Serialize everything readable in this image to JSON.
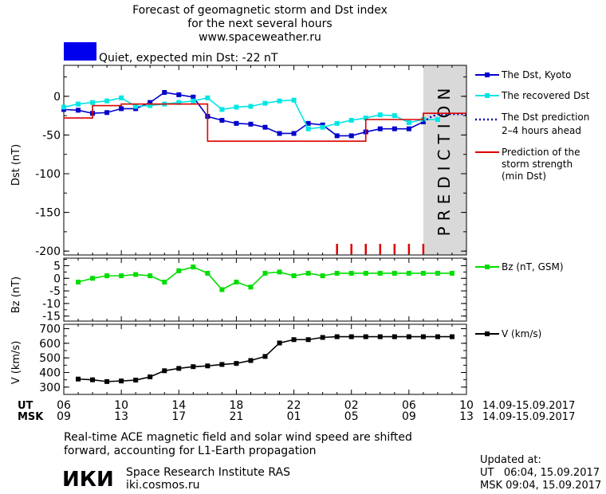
{
  "header": {
    "title_line1": "Forecast of geomagnetic storm and Dst index",
    "title_line2": "for the next several hours",
    "website": "www.spaceweather.ru"
  },
  "status": {
    "color": "#0000ee",
    "text": "Quiet, expected min Dst: -22 nT"
  },
  "prediction_label": "PREDICTION",
  "x_axis": {
    "ut_label": "UT",
    "msk_label": "MSK",
    "ut_ticks": [
      "06",
      "10",
      "14",
      "18",
      "22",
      "02",
      "06",
      "10"
    ],
    "msk_ticks": [
      "09",
      "13",
      "17",
      "21",
      "01",
      "05",
      "09",
      "13"
    ],
    "date_range": "14.09-15.09.2017"
  },
  "chart_data": [
    {
      "type": "line",
      "ylabel": "Dst (nT)",
      "ylim": [
        -205,
        40
      ],
      "yticks": [
        0,
        -50,
        -100,
        -150,
        -200
      ],
      "xlim": [
        6,
        34
      ],
      "prediction_region": [
        31,
        34
      ],
      "series": [
        {
          "name": "The Dst, Kyoto",
          "color": "#0000cc",
          "marker": "square",
          "x": [
            6,
            7,
            8,
            9,
            10,
            11,
            12,
            13,
            14,
            15,
            16,
            17,
            18,
            19,
            20,
            21,
            22,
            23,
            24,
            25,
            26,
            27,
            28,
            29,
            30,
            31
          ],
          "y": [
            -17,
            -18,
            -22,
            -21,
            -16,
            -16,
            -8,
            5,
            2,
            -1,
            -26,
            -31,
            -35,
            -36,
            -40,
            -48,
            -48,
            -35,
            -37,
            -51,
            -51,
            -46,
            -42,
            -42,
            -42,
            -33
          ]
        },
        {
          "name": "The recovered Dst",
          "color": "#00e5e5",
          "marker": "square",
          "x": [
            6,
            7,
            8,
            9,
            10,
            11,
            12,
            13,
            14,
            15,
            16,
            17,
            18,
            19,
            20,
            21,
            22,
            23,
            24,
            25,
            26,
            27,
            28,
            29,
            30,
            31,
            32
          ],
          "y": [
            -14,
            -10,
            -8,
            -6,
            -2,
            -13,
            -12,
            -10,
            -8,
            -6,
            -2,
            -17,
            -14,
            -13,
            -9,
            -6,
            -5,
            -42,
            -40,
            -35,
            -31,
            -28,
            -24,
            -25,
            -34,
            -30,
            -30
          ]
        },
        {
          "name": "The Dst prediction 2-4 hours ahead",
          "color": "#0000aa",
          "style": "dotted",
          "x": [
            31,
            31.5,
            32,
            33,
            34
          ],
          "y": [
            -33,
            -27,
            -23,
            -23,
            -23
          ]
        },
        {
          "name": "Prediction of the storm strength (min Dst)",
          "color": "#dd0000",
          "style": "step",
          "x": [
            6,
            7,
            8,
            9,
            10,
            11,
            12,
            13,
            14,
            15,
            16,
            17,
            18,
            19,
            20,
            21,
            22,
            23,
            24,
            25,
            26,
            27,
            28,
            29,
            30,
            31,
            32,
            33,
            34
          ],
          "y": [
            -28,
            -28,
            -12,
            -12,
            -10,
            -10,
            -10,
            -10,
            -10,
            -10,
            -58,
            -58,
            -58,
            -58,
            -58,
            -58,
            -58,
            -58,
            -58,
            -58,
            -58,
            -30,
            -30,
            -30,
            -30,
            -22,
            -22,
            -22,
            -22
          ]
        }
      ],
      "storm_markers": {
        "color": "#dd0000",
        "x": [
          25,
          26,
          27,
          28,
          29,
          30,
          31
        ]
      }
    },
    {
      "type": "line",
      "ylabel": "Bz (nT)",
      "ylim": [
        -17,
        8
      ],
      "yticks": [
        5,
        0,
        -5,
        -10,
        -15
      ],
      "xlim": [
        6,
        34
      ],
      "series": [
        {
          "name": "Bz (nT, GSM)",
          "color": "#00dd00",
          "marker": "square",
          "x": [
            7,
            8,
            9,
            10,
            11,
            12,
            13,
            14,
            15,
            16,
            17,
            18,
            19,
            20,
            21,
            22,
            23,
            24,
            25,
            26,
            27,
            28,
            29,
            30,
            31,
            32,
            33
          ],
          "y": [
            -1.5,
            0,
            1,
            1,
            1.5,
            1,
            -1.5,
            3,
            4.5,
            2,
            -4.5,
            -1.5,
            -3.5,
            2,
            2.5,
            1,
            2,
            1,
            2,
            2,
            2,
            2,
            2,
            2,
            2,
            2,
            2
          ]
        }
      ]
    },
    {
      "type": "line",
      "ylabel": "V (km/s)",
      "ylim": [
        250,
        730
      ],
      "yticks": [
        700,
        600,
        500,
        400,
        300
      ],
      "xlim": [
        6,
        34
      ],
      "series": [
        {
          "name": "V (km/s)",
          "color": "#000000",
          "marker": "square",
          "x": [
            7,
            8,
            9,
            10,
            11,
            12,
            13,
            14,
            15,
            16,
            17,
            18,
            19,
            20,
            21,
            22,
            23,
            24,
            25,
            26,
            27,
            28,
            29,
            30,
            31,
            32,
            33
          ],
          "y": [
            355,
            350,
            338,
            342,
            348,
            370,
            412,
            428,
            440,
            445,
            455,
            462,
            482,
            510,
            602,
            625,
            625,
            640,
            645,
            645,
            645,
            645,
            645,
            645,
            645,
            645,
            645
          ]
        }
      ]
    }
  ],
  "footer": {
    "note_line1": "Real-time ACE magnetic field and solar wind speed are shifted",
    "note_line2": "forward, accounting for L1-Earth propagation",
    "logo_text": "ИКИ",
    "institute": "Space Research Institute RAS",
    "institute_url": "iki.cosmos.ru",
    "updated_label": "Updated at:",
    "updated_ut": "UT   06:04, 15.09.2017",
    "updated_msk": "MSK 09:04, 15.09.2017"
  }
}
